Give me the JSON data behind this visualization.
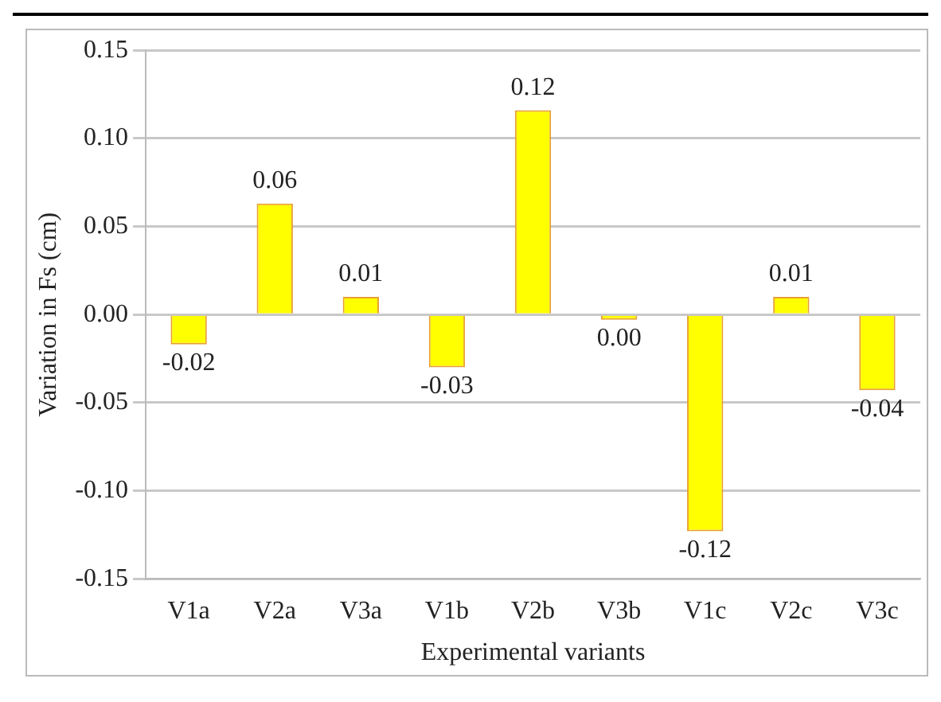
{
  "chart_data": {
    "type": "bar",
    "xlabel": "Experimental variants",
    "ylabel": "Variation in Fs (cm)",
    "categories": [
      "V1a",
      "V2a",
      "V3a",
      "V1b",
      "V2b",
      "V3b",
      "V1c",
      "V2c",
      "V3c"
    ],
    "values": [
      -0.017,
      0.063,
      0.01,
      -0.03,
      0.116,
      -0.003,
      -0.123,
      0.01,
      -0.043
    ],
    "value_labels": [
      "-0.02",
      "0.06",
      "0.01",
      "-0.03",
      "0.12",
      "0.00",
      "-0.12",
      "0.01",
      "-0.04"
    ],
    "color": "#ffff00",
    "ylim": [
      -0.15,
      0.15
    ],
    "yticks": [
      {
        "value": -0.15,
        "label": "-0.15"
      },
      {
        "value": -0.1,
        "label": "-0.10"
      },
      {
        "value": -0.05,
        "label": "-0.05"
      },
      {
        "value": 0,
        "label": "0.00"
      },
      {
        "value": 0.05,
        "label": "0.05"
      },
      {
        "value": 0.1,
        "label": "0.10"
      },
      {
        "value": 0.15,
        "label": "0.15"
      }
    ],
    "grid": "y",
    "legend": false
  }
}
